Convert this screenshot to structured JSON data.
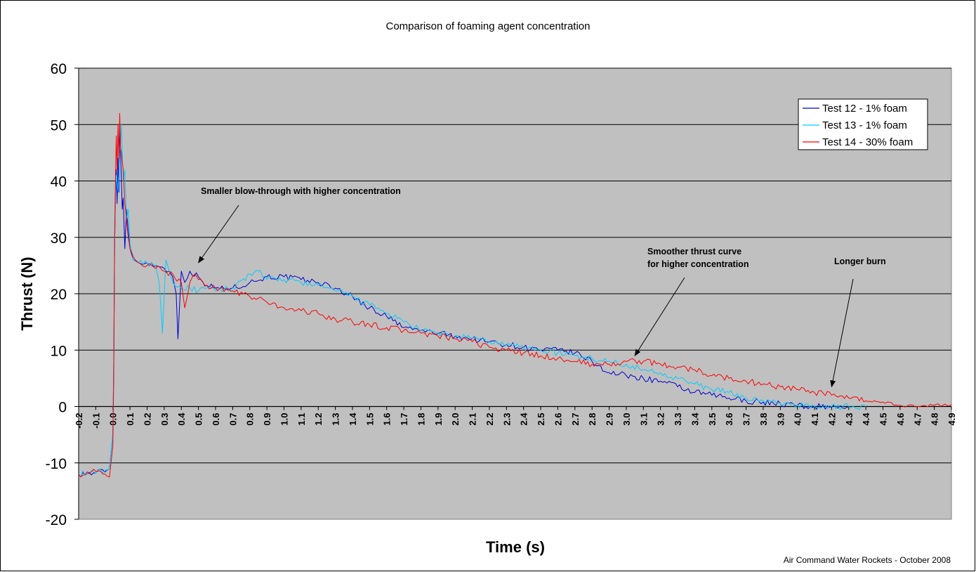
{
  "chart_data": {
    "type": "line",
    "title": "Comparison of foaming agent concentration",
    "xlabel": "Time (s)",
    "ylabel": "Thrust (N)",
    "xlim": [
      -0.2,
      4.9
    ],
    "ylim": [
      -20,
      60
    ],
    "xticks": [
      "-0.2",
      "-0.1",
      "0.0",
      "0.1",
      "0.2",
      "0.3",
      "0.4",
      "0.5",
      "0.6",
      "0.7",
      "0.8",
      "0.9",
      "1.0",
      "1.1",
      "1.2",
      "1.3",
      "1.4",
      "1.5",
      "1.6",
      "1.7",
      "1.8",
      "1.9",
      "2.0",
      "2.1",
      "2.2",
      "2.3",
      "2.4",
      "2.5",
      "2.6",
      "2.7",
      "2.8",
      "2.9",
      "3.0",
      "3.1",
      "3.2",
      "3.3",
      "3.4",
      "3.5",
      "3.6",
      "3.7",
      "3.8",
      "3.9",
      "4.0",
      "4.1",
      "4.2",
      "4.3",
      "4.4",
      "4.5",
      "4.6",
      "4.7",
      "4.8",
      "4.9"
    ],
    "yticks": [
      "60",
      "50",
      "40",
      "30",
      "20",
      "10",
      "0",
      "-10",
      "-20"
    ],
    "grid": "horizontal",
    "plot_background": "#C0C0C0",
    "legend_position": "top-right",
    "series": [
      {
        "name": "Test 12 - 1% foam",
        "color": "#0000CC",
        "x": [
          -0.2,
          -0.1,
          -0.02,
          0.0,
          0.005,
          0.01,
          0.015,
          0.02,
          0.025,
          0.03,
          0.035,
          0.04,
          0.045,
          0.05,
          0.055,
          0.06,
          0.07,
          0.08,
          0.09,
          0.1,
          0.12,
          0.15,
          0.2,
          0.25,
          0.3,
          0.33,
          0.35,
          0.37,
          0.38,
          0.39,
          0.4,
          0.42,
          0.45,
          0.5,
          0.55,
          0.6,
          0.7,
          0.8,
          0.9,
          1.0,
          1.1,
          1.2,
          1.3,
          1.4,
          1.5,
          1.6,
          1.7,
          1.8,
          1.9,
          2.0,
          2.1,
          2.2,
          2.3,
          2.4,
          2.5,
          2.6,
          2.7,
          2.8,
          2.9,
          3.0,
          3.1,
          3.2,
          3.3,
          3.4,
          3.5,
          3.6,
          3.7,
          3.8,
          3.9,
          4.0,
          4.05,
          4.1,
          4.2,
          4.3
        ],
        "y": [
          -12,
          -11.8,
          -11,
          -5,
          8,
          28,
          37,
          42,
          36,
          44,
          38,
          50,
          45,
          40,
          35,
          37,
          28,
          35,
          31,
          28,
          26,
          25.5,
          25.5,
          25,
          24.5,
          24,
          23,
          20,
          12,
          18,
          24,
          22,
          24,
          23,
          21.5,
          21,
          21,
          22,
          23,
          23,
          22.5,
          22,
          21,
          19.5,
          17.5,
          16,
          14,
          13.5,
          13,
          12.5,
          12,
          11.5,
          11,
          10.5,
          10,
          10,
          9.5,
          8,
          6,
          5.5,
          5,
          4.5,
          3.5,
          2.5,
          2,
          1.5,
          1,
          0.8,
          0.5,
          0.2,
          0,
          0,
          0,
          0
        ]
      },
      {
        "name": "Test 13 - 1% foam",
        "color": "#00CCFF",
        "x": [
          -0.2,
          -0.1,
          -0.02,
          0.0,
          0.005,
          0.01,
          0.015,
          0.02,
          0.03,
          0.04,
          0.05,
          0.06,
          0.07,
          0.08,
          0.09,
          0.1,
          0.12,
          0.15,
          0.2,
          0.25,
          0.27,
          0.28,
          0.29,
          0.3,
          0.31,
          0.33,
          0.35,
          0.4,
          0.45,
          0.5,
          0.55,
          0.6,
          0.7,
          0.8,
          0.85,
          0.9,
          1.0,
          1.1,
          1.2,
          1.3,
          1.4,
          1.5,
          1.6,
          1.7,
          1.8,
          1.9,
          2.0,
          2.1,
          2.2,
          2.3,
          2.4,
          2.5,
          2.6,
          2.7,
          2.8,
          2.9,
          3.0,
          3.1,
          3.2,
          3.3,
          3.4,
          3.5,
          3.6,
          3.7,
          3.8,
          3.9,
          4.0,
          4.1,
          4.2,
          4.3,
          4.4
        ],
        "y": [
          -12,
          -11.8,
          -11,
          -5,
          8,
          28,
          38,
          41,
          38,
          44,
          50,
          40,
          42,
          33,
          35,
          29,
          26,
          25.5,
          25.5,
          25,
          22,
          18,
          13,
          20,
          26,
          24,
          22,
          21,
          21,
          20.5,
          21,
          20.5,
          21,
          23.5,
          24,
          22.5,
          22.5,
          22,
          21.5,
          20.5,
          19.5,
          18,
          16.5,
          15,
          13.5,
          13,
          12.5,
          12,
          11.5,
          11,
          10.5,
          10,
          9.5,
          9,
          8.5,
          8,
          7.5,
          6.5,
          6,
          5,
          4,
          3,
          2.5,
          1.5,
          1,
          0.5,
          0.3,
          0,
          0,
          0,
          0
        ]
      },
      {
        "name": "Test 14 - 30% foam",
        "color": "#FF0000",
        "x": [
          -0.2,
          -0.1,
          -0.02,
          0.0,
          0.005,
          0.01,
          0.015,
          0.02,
          0.025,
          0.03,
          0.035,
          0.04,
          0.045,
          0.05,
          0.06,
          0.07,
          0.08,
          0.09,
          0.1,
          0.12,
          0.15,
          0.2,
          0.25,
          0.3,
          0.35,
          0.4,
          0.42,
          0.45,
          0.48,
          0.5,
          0.55,
          0.6,
          0.7,
          0.8,
          0.9,
          1.0,
          1.1,
          1.2,
          1.3,
          1.4,
          1.5,
          1.6,
          1.7,
          1.8,
          1.9,
          2.0,
          2.1,
          2.2,
          2.3,
          2.4,
          2.5,
          2.6,
          2.7,
          2.8,
          2.9,
          3.0,
          3.1,
          3.2,
          3.3,
          3.4,
          3.5,
          3.6,
          3.7,
          3.8,
          3.9,
          4.0,
          4.1,
          4.2,
          4.3,
          4.4,
          4.5,
          4.6,
          4.7,
          4.8,
          4.9
        ],
        "y": [
          -12,
          -11.5,
          -12.5,
          -7,
          5,
          30,
          40,
          48,
          42,
          50,
          44,
          52,
          46,
          45,
          42,
          36,
          33,
          30,
          28,
          26.5,
          25.5,
          25,
          24.5,
          24,
          23.5,
          22,
          17.5,
          22,
          23.5,
          22.5,
          21.5,
          21,
          20.5,
          19.5,
          18.5,
          17.5,
          17,
          16.5,
          15.5,
          15,
          14.5,
          14,
          13.5,
          13,
          12.5,
          12,
          11.5,
          10.5,
          10,
          9.5,
          9,
          8.5,
          8,
          7.5,
          7.5,
          8,
          8,
          7.5,
          7,
          6.5,
          5.5,
          5,
          4.5,
          4,
          3.5,
          3,
          2.5,
          2,
          1.5,
          1,
          0.8,
          0.2,
          0,
          0.2,
          0.3
        ]
      }
    ],
    "annotations": [
      {
        "text": "Smaller blow-through with higher concentration",
        "arrow_to": [
          0.5,
          25.5
        ]
      },
      {
        "text": "Smoother  thrust curve",
        "text2": "for higher concentration",
        "arrow_to": [
          3.05,
          9
        ]
      },
      {
        "text": "Longer burn",
        "arrow_to": [
          4.2,
          3.5
        ]
      }
    ],
    "footnote": "Air Command Water Rockets - October 2008"
  }
}
